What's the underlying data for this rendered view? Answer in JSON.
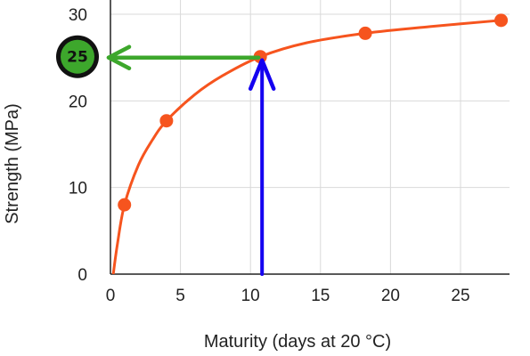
{
  "chart_data": {
    "type": "line",
    "xlabel": "Maturity (days at 20 °C)",
    "ylabel": "Strength (MPa)",
    "xlim": [
      0,
      28.5
    ],
    "ylim": [
      0,
      30
    ],
    "x_ticks": [
      "0",
      "5",
      "10",
      "15",
      "20",
      "25"
    ],
    "y_ticks": [
      "0",
      "10",
      "20",
      "30"
    ],
    "grid": true,
    "series": [
      {
        "points": [
          {
            "x": 1,
            "y": 8
          },
          {
            "x": 4,
            "y": 17.7
          },
          {
            "x": 10.7,
            "y": 25.1
          },
          {
            "x": 18.2,
            "y": 27.8
          },
          {
            "x": 27.9,
            "y": 29.3
          }
        ],
        "curve": [
          {
            "x": 0.2,
            "y": 0
          },
          {
            "x": 0.5,
            "y": 3.5
          },
          {
            "x": 1,
            "y": 8
          },
          {
            "x": 2,
            "y": 12.6
          },
          {
            "x": 3,
            "y": 15.5
          },
          {
            "x": 4,
            "y": 17.7
          },
          {
            "x": 6,
            "y": 20.7
          },
          {
            "x": 8,
            "y": 22.9
          },
          {
            "x": 10.7,
            "y": 25.1
          },
          {
            "x": 14,
            "y": 26.7
          },
          {
            "x": 18.2,
            "y": 27.8
          },
          {
            "x": 23,
            "y": 28.6
          },
          {
            "x": 27.9,
            "y": 29.3
          }
        ]
      }
    ],
    "annotations": {
      "badge_value": "25",
      "reading": {
        "x": 10.7,
        "y": 25.1
      },
      "up_arrow_color": "#1400f0",
      "left_arrow_color": "#3da72c",
      "badge_fill": "#3da72c"
    },
    "colors": {
      "line": "#f6541e",
      "marker": "#f6541e",
      "grid": "#d9d9d9",
      "axis": "#222222"
    }
  }
}
